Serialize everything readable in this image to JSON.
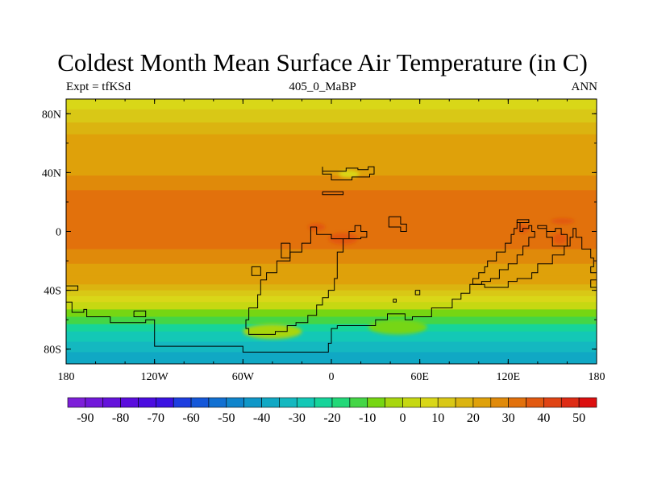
{
  "header": {
    "title": "Coldest Month Mean Surface Air Temperature (in C)",
    "left_label": "Expt = tfKSd",
    "center_label": "405_0_MaBP",
    "right_label": "ANN"
  },
  "chart_data": {
    "type": "heatmap",
    "title": "Coldest Month Mean Surface Air Temperature (in C)",
    "xlabel": "",
    "ylabel": "",
    "xlim": [
      -180,
      180
    ],
    "ylim": [
      -90,
      90
    ],
    "x_ticks": [
      {
        "value": -180,
        "label": "180"
      },
      {
        "value": -120,
        "label": "120W"
      },
      {
        "value": -60,
        "label": "60W"
      },
      {
        "value": 0,
        "label": "0"
      },
      {
        "value": 60,
        "label": "60E"
      },
      {
        "value": 120,
        "label": "120E"
      },
      {
        "value": 180,
        "label": "180"
      }
    ],
    "y_ticks": [
      {
        "value": 80,
        "label": "80N"
      },
      {
        "value": 40,
        "label": "40N"
      },
      {
        "value": 0,
        "label": "0"
      },
      {
        "value": -40,
        "label": "40S"
      },
      {
        "value": -80,
        "label": "80S"
      }
    ],
    "colorbar": {
      "min": -95,
      "max": 55,
      "step": 5,
      "labels": [
        -90,
        -80,
        -70,
        -60,
        -50,
        -40,
        -30,
        -20,
        -10,
        0,
        10,
        20,
        30,
        40,
        50
      ],
      "colors": [
        "#7d1fd9",
        "#7118da",
        "#6412db",
        "#5a0ddd",
        "#4a0ce0",
        "#3a12e2",
        "#1d3ee0",
        "#1457d9",
        "#1170d2",
        "#0f85cc",
        "#0f97c8",
        "#10a8c4",
        "#14b8c0",
        "#13c8b6",
        "#16d49a",
        "#22d878",
        "#44d646",
        "#76d612",
        "#a8d60f",
        "#c6d812",
        "#d9d718",
        "#d9c816",
        "#dbb410",
        "#dfa10a",
        "#e08a0a",
        "#e2710c",
        "#e25910",
        "#e04414",
        "#de2b14",
        "#dc0f0f"
      ]
    },
    "temperature_bands": [
      {
        "lat_from": 90,
        "lat_to": 83,
        "value": 7
      },
      {
        "lat_from": 83,
        "lat_to": 74,
        "value": 12
      },
      {
        "lat_from": 74,
        "lat_to": 66,
        "value": 17
      },
      {
        "lat_from": 66,
        "lat_to": 55,
        "value": 22
      },
      {
        "lat_from": 55,
        "lat_to": 38,
        "value": 24
      },
      {
        "lat_from": 38,
        "lat_to": 28,
        "value": 28
      },
      {
        "lat_from": 28,
        "lat_to": -12,
        "value": 31
      },
      {
        "lat_from": -12,
        "lat_to": -22,
        "value": 28
      },
      {
        "lat_from": -22,
        "lat_to": -30,
        "value": 24
      },
      {
        "lat_from": -30,
        "lat_to": -36,
        "value": 21
      },
      {
        "lat_from": -36,
        "lat_to": -40,
        "value": 18
      },
      {
        "lat_from": -40,
        "lat_to": -44,
        "value": 13
      },
      {
        "lat_from": -44,
        "lat_to": -48,
        "value": 8
      },
      {
        "lat_from": -48,
        "lat_to": -53,
        "value": 2
      },
      {
        "lat_from": -53,
        "lat_to": -58,
        "value": -8
      },
      {
        "lat_from": -58,
        "lat_to": -63,
        "value": -14
      },
      {
        "lat_from": -63,
        "lat_to": -68,
        "value": -21
      },
      {
        "lat_from": -68,
        "lat_to": -75,
        "value": -28
      },
      {
        "lat_from": -75,
        "lat_to": -82,
        "value": -33
      },
      {
        "lat_from": -82,
        "lat_to": -90,
        "value": -38
      }
    ],
    "hotspots": [
      {
        "lon": 8,
        "lat": -5,
        "rx": 10,
        "ry": 4,
        "value": 38
      },
      {
        "lon": -10,
        "lat": 3,
        "rx": 6,
        "ry": 2.5,
        "value": 38
      },
      {
        "lon": 130,
        "lat": 2,
        "rx": 4,
        "ry": 3,
        "value": 37
      },
      {
        "lon": 157,
        "lat": 7,
        "rx": 8,
        "ry": 2,
        "value": 37
      },
      {
        "lon": 155,
        "lat": -5,
        "rx": 5,
        "ry": 4,
        "value": 38
      },
      {
        "lon": 12,
        "lat": 39,
        "rx": 7,
        "ry": 2.5,
        "value": 5
      },
      {
        "lon": -40,
        "lat": -68,
        "rx": 20,
        "ry": 5,
        "value": -3
      },
      {
        "lon": 45,
        "lat": -65,
        "rx": 20,
        "ry": 5,
        "value": -8
      }
    ],
    "coastlines": [
      [
        [
          -6,
          44
        ],
        [
          -6,
          41
        ],
        [
          10,
          41
        ],
        [
          10,
          43
        ],
        [
          18,
          43
        ],
        [
          18,
          42
        ],
        [
          25,
          42
        ],
        [
          25,
          44
        ],
        [
          29,
          44
        ],
        [
          29,
          39
        ],
        [
          26,
          39
        ],
        [
          26,
          37
        ],
        [
          14,
          37
        ],
        [
          14,
          35
        ],
        [
          0,
          35
        ],
        [
          0,
          39
        ],
        [
          -6,
          39
        ],
        [
          -6,
          44
        ]
      ],
      [
        [
          -6,
          27
        ],
        [
          8,
          27
        ],
        [
          8,
          25
        ],
        [
          -6,
          25
        ],
        [
          -6,
          27
        ]
      ],
      [
        [
          -10,
          3
        ],
        [
          -14,
          3
        ],
        [
          -14,
          -8
        ],
        [
          -20,
          -8
        ],
        [
          -20,
          -14
        ],
        [
          -28,
          -14
        ],
        [
          -28,
          -20
        ],
        [
          -37,
          -20
        ],
        [
          -37,
          -28
        ],
        [
          -44,
          -28
        ],
        [
          -44,
          -33
        ],
        [
          -48,
          -33
        ],
        [
          -48,
          -43
        ],
        [
          -50,
          -43
        ],
        [
          -50,
          -52
        ],
        [
          -56,
          -52
        ],
        [
          -56,
          -60
        ],
        [
          -58,
          -60
        ],
        [
          -58,
          -66
        ],
        [
          -56,
          -66
        ],
        [
          -56,
          -70
        ],
        [
          -38,
          -70
        ],
        [
          -38,
          -68
        ],
        [
          -30,
          -68
        ],
        [
          -30,
          -64
        ],
        [
          -24,
          -64
        ],
        [
          -24,
          -62
        ],
        [
          -16,
          -62
        ],
        [
          -16,
          -57
        ],
        [
          -10,
          -57
        ],
        [
          -10,
          -50
        ],
        [
          -6,
          -50
        ],
        [
          -6,
          -45
        ],
        [
          -2,
          -45
        ],
        [
          -2,
          -40
        ],
        [
          2,
          -40
        ],
        [
          2,
          -32
        ],
        [
          4,
          -32
        ],
        [
          4,
          -14
        ],
        [
          8,
          -14
        ],
        [
          8,
          -5
        ],
        [
          12,
          -5
        ],
        [
          12,
          0
        ],
        [
          16,
          0
        ],
        [
          16,
          4
        ],
        [
          20,
          4
        ],
        [
          20,
          0
        ],
        [
          24,
          0
        ],
        [
          24,
          -4
        ],
        [
          20,
          -4
        ],
        [
          20,
          -5
        ],
        [
          0,
          -5
        ],
        [
          0,
          -2
        ],
        [
          -10,
          -2
        ],
        [
          -10,
          3
        ]
      ],
      [
        [
          -28,
          -8
        ],
        [
          -34,
          -8
        ],
        [
          -34,
          -18
        ],
        [
          -28,
          -18
        ],
        [
          -28,
          -8
        ]
      ],
      [
        [
          -48,
          -24
        ],
        [
          -54,
          -24
        ],
        [
          -54,
          -30
        ],
        [
          -48,
          -30
        ],
        [
          -48,
          -24
        ]
      ],
      [
        [
          39,
          10
        ],
        [
          47,
          10
        ],
        [
          47,
          5
        ],
        [
          51,
          5
        ],
        [
          51,
          0
        ],
        [
          47,
          0
        ],
        [
          47,
          3
        ],
        [
          39,
          3
        ],
        [
          39,
          10
        ]
      ],
      [
        [
          57,
          -40
        ],
        [
          60,
          -40
        ],
        [
          60,
          -43
        ],
        [
          57,
          -43
        ],
        [
          57,
          -40
        ]
      ],
      [
        [
          42,
          -46
        ],
        [
          44,
          -46
        ],
        [
          44,
          -48
        ],
        [
          42,
          -48
        ],
        [
          42,
          -46
        ]
      ],
      [
        [
          -180,
          -37
        ],
        [
          -172,
          -37
        ],
        [
          -172,
          -40
        ],
        [
          -180,
          -40
        ],
        [
          -180,
          -37
        ]
      ],
      [
        [
          -134,
          -54
        ],
        [
          -126,
          -54
        ],
        [
          -126,
          -58
        ],
        [
          -134,
          -58
        ],
        [
          -134,
          -54
        ]
      ],
      [
        [
          -180,
          -48
        ],
        [
          -176,
          -48
        ],
        [
          -176,
          -55
        ],
        [
          -168,
          -55
        ],
        [
          -168,
          -53
        ],
        [
          -166,
          -53
        ],
        [
          -166,
          -58
        ],
        [
          -150,
          -58
        ],
        [
          -150,
          -62
        ],
        [
          -126,
          -62
        ],
        [
          -126,
          -60
        ],
        [
          -120,
          -60
        ],
        [
          -120,
          -78
        ],
        [
          -60,
          -78
        ],
        [
          -60,
          -82
        ],
        [
          -2,
          -82
        ],
        [
          -2,
          -76
        ],
        [
          0,
          -76
        ],
        [
          0,
          -66
        ],
        [
          4,
          -66
        ],
        [
          4,
          -64
        ],
        [
          30,
          -64
        ],
        [
          30,
          -60
        ],
        [
          38,
          -60
        ],
        [
          38,
          -56
        ],
        [
          50,
          -56
        ],
        [
          50,
          -60
        ],
        [
          55,
          -60
        ],
        [
          55,
          -58
        ],
        [
          68,
          -58
        ],
        [
          68,
          -52
        ],
        [
          82,
          -52
        ],
        [
          82,
          -46
        ],
        [
          88,
          -46
        ],
        [
          88,
          -42
        ],
        [
          94,
          -42
        ],
        [
          94,
          -36
        ],
        [
          104,
          -36
        ],
        [
          104,
          -38
        ],
        [
          120,
          -38
        ],
        [
          120,
          -34
        ],
        [
          126,
          -34
        ],
        [
          126,
          -32
        ],
        [
          136,
          -32
        ],
        [
          136,
          -28
        ],
        [
          140,
          -28
        ],
        [
          140,
          -22
        ],
        [
          150,
          -22
        ],
        [
          150,
          -16
        ],
        [
          158,
          -16
        ],
        [
          158,
          -10
        ],
        [
          162,
          -10
        ],
        [
          162,
          -4
        ],
        [
          164,
          -4
        ],
        [
          164,
          2
        ],
        [
          166,
          2
        ],
        [
          166,
          -4
        ],
        [
          170,
          -4
        ],
        [
          170,
          -12
        ],
        [
          176,
          -12
        ],
        [
          176,
          -18
        ],
        [
          178,
          -18
        ],
        [
          178,
          -24
        ],
        [
          176,
          -24
        ],
        [
          176,
          -28
        ],
        [
          180,
          -28
        ]
      ],
      [
        [
          180,
          -33
        ],
        [
          176,
          -33
        ],
        [
          176,
          -38
        ],
        [
          180,
          -38
        ]
      ],
      [
        [
          96,
          -36
        ],
        [
          96,
          -32
        ],
        [
          100,
          -32
        ],
        [
          100,
          -28
        ],
        [
          104,
          -28
        ],
        [
          104,
          -24
        ],
        [
          106,
          -24
        ],
        [
          106,
          -20
        ],
        [
          112,
          -20
        ],
        [
          112,
          -14
        ],
        [
          118,
          -14
        ],
        [
          118,
          -8
        ],
        [
          122,
          -8
        ],
        [
          122,
          -2
        ],
        [
          124,
          -2
        ],
        [
          124,
          2
        ],
        [
          126,
          2
        ],
        [
          126,
          6
        ],
        [
          128,
          6
        ],
        [
          128,
          0
        ],
        [
          130,
          0
        ],
        [
          130,
          2
        ],
        [
          134,
          2
        ],
        [
          134,
          4
        ],
        [
          136,
          4
        ],
        [
          136,
          0
        ],
        [
          138,
          0
        ],
        [
          138,
          -4
        ],
        [
          134,
          -4
        ],
        [
          134,
          -10
        ],
        [
          130,
          -10
        ],
        [
          130,
          -16
        ],
        [
          126,
          -16
        ],
        [
          126,
          -22
        ],
        [
          120,
          -22
        ],
        [
          120,
          -26
        ],
        [
          114,
          -26
        ],
        [
          114,
          -32
        ],
        [
          108,
          -32
        ],
        [
          108,
          -34
        ],
        [
          102,
          -34
        ],
        [
          102,
          -36
        ],
        [
          96,
          -36
        ]
      ],
      [
        [
          140,
          2
        ],
        [
          146,
          2
        ],
        [
          146,
          -4
        ],
        [
          150,
          -4
        ],
        [
          150,
          -10
        ],
        [
          160,
          -10
        ],
        [
          160,
          -2
        ],
        [
          156,
          -2
        ],
        [
          156,
          2
        ],
        [
          152,
          2
        ],
        [
          152,
          0
        ],
        [
          146,
          0
        ],
        [
          146,
          4
        ],
        [
          140,
          4
        ],
        [
          140,
          2
        ]
      ],
      [
        [
          126,
          8
        ],
        [
          134,
          8
        ],
        [
          134,
          6
        ],
        [
          126,
          6
        ],
        [
          126,
          8
        ]
      ]
    ]
  }
}
